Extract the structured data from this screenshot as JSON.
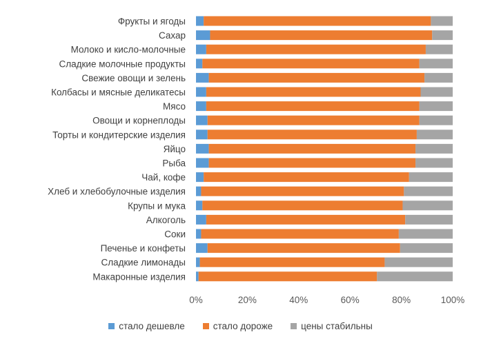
{
  "chart_data": {
    "type": "bar",
    "orientation": "horizontal",
    "stacked": "percent",
    "categories": [
      "Фрукты и ягоды",
      "Сахар",
      "Молоко и кисло-молочные",
      "Сладкие молочные продукты",
      "Свежие овощи и зелень",
      "Колбасы и мясные деликатесы",
      "Мясо",
      "Овощи и корнеплоды",
      "Торты и кондитерские изделия",
      "Яйцо",
      "Рыба",
      "Чай, кофе",
      "Хлеб и хлебобулочные изделия",
      "Крупы и мука",
      "Алкоголь",
      "Соки",
      "Печенье и конфеты",
      "Сладкие лимонады",
      "Макаронные изделия"
    ],
    "series": [
      {
        "name": "стало дешевле",
        "color": "#5B9BD5",
        "values": [
          3,
          5.5,
          4,
          2.5,
          5,
          4,
          4,
          4.5,
          4.5,
          5,
          5,
          3,
          2,
          2.5,
          4,
          2,
          4.5,
          1.5,
          1
        ]
      },
      {
        "name": "стало дороже",
        "color": "#ED7D31",
        "values": [
          88.5,
          86.5,
          85.5,
          84.5,
          84,
          83.5,
          83,
          82.5,
          81.5,
          80.5,
          80.5,
          80,
          79,
          78,
          77.5,
          77,
          75,
          72,
          69.5
        ]
      },
      {
        "name": "цены стабильны",
        "color": "#A5A5A5",
        "values": [
          8.5,
          8,
          10.5,
          13,
          11,
          12.5,
          13,
          13,
          14,
          14.5,
          14.5,
          17,
          19,
          19.5,
          18.5,
          21,
          20.5,
          26.5,
          29.5
        ]
      }
    ],
    "x_ticks": [
      "0%",
      "20%",
      "40%",
      "60%",
      "80%",
      "100%"
    ],
    "xlim": [
      0,
      100
    ],
    "grid": false,
    "legend_position": "bottom"
  }
}
